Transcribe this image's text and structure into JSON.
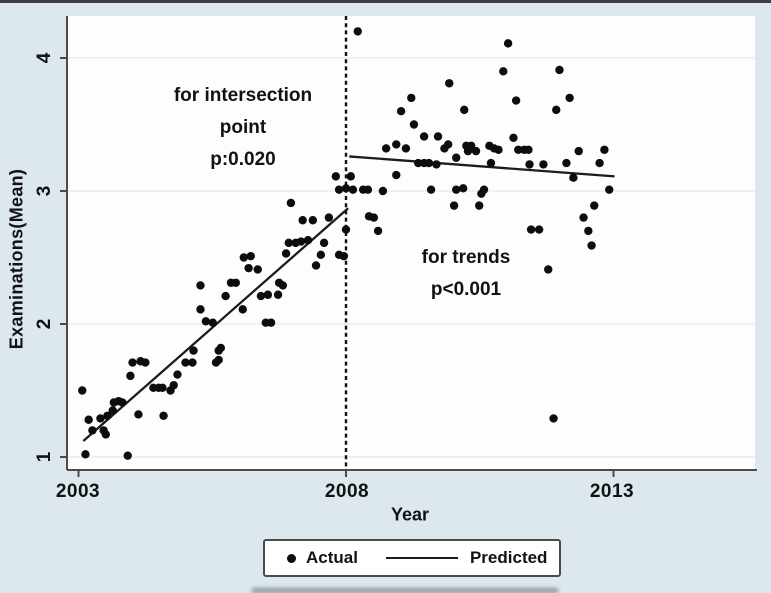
{
  "figure": {
    "y_axis": {
      "label": "Examinations(Mean)",
      "tick_labels": [
        "4",
        "3",
        "2",
        "1"
      ]
    },
    "x_axis": {
      "label": "Year",
      "tick_labels": [
        "2003",
        "2008",
        "2013"
      ]
    },
    "annotations": {
      "intersection_line1": "for intersection",
      "intersection_line2": "point",
      "intersection_line3": "p:0.020",
      "trends_line1": "for trends",
      "trends_line2": "p<0.001"
    },
    "legend": {
      "actual": "Actual",
      "predicted": "Predicted"
    },
    "colors": {
      "background": "#dce8ee",
      "plot_background": "#fdfdfd",
      "points": "#0d0d0d",
      "lines": "#1c1c1c",
      "grid": "#ececec",
      "spine": "#4b4b4b"
    }
  },
  "chart_data": {
    "type": "scatter",
    "title": "",
    "xlabel": "Year",
    "ylabel": "Examinations(Mean)",
    "xlim": [
      2002.8,
      2013.7
    ],
    "ylim": [
      0.95,
      4.35
    ],
    "x_ticks": [
      2003,
      2008,
      2013
    ],
    "y_ticks": [
      1,
      2,
      3,
      4
    ],
    "grid": true,
    "legend_position": "bottom",
    "intervention_x": 2008,
    "annotations": [
      {
        "text": "for intersection point p:0.020",
        "x": 2006.1,
        "y": 3.5
      },
      {
        "text": "for trends p<0.001",
        "x": 2010.3,
        "y": 2.4
      }
    ],
    "series": [
      {
        "name": "Actual",
        "type": "scatter",
        "points": [
          [
            2003.07,
            1.5
          ],
          [
            2003.13,
            1.02
          ],
          [
            2003.19,
            1.28
          ],
          [
            2003.26,
            1.2
          ],
          [
            2003.41,
            1.29
          ],
          [
            2003.47,
            1.2
          ],
          [
            2003.51,
            1.17
          ],
          [
            2003.54,
            1.31
          ],
          [
            2003.64,
            1.35
          ],
          [
            2003.66,
            1.41
          ],
          [
            2003.75,
            1.42
          ],
          [
            2003.82,
            1.41
          ],
          [
            2003.92,
            1.01
          ],
          [
            2003.97,
            1.61
          ],
          [
            2004.01,
            1.71
          ],
          [
            2004.12,
            1.32
          ],
          [
            2004.16,
            1.72
          ],
          [
            2004.25,
            1.71
          ],
          [
            2004.4,
            1.52
          ],
          [
            2004.5,
            1.52
          ],
          [
            2004.57,
            1.52
          ],
          [
            2004.59,
            1.31
          ],
          [
            2004.72,
            1.5
          ],
          [
            2004.78,
            1.54
          ],
          [
            2004.85,
            1.62
          ],
          [
            2005.0,
            1.71
          ],
          [
            2005.13,
            1.71
          ],
          [
            2005.15,
            1.8
          ],
          [
            2005.28,
            2.29
          ],
          [
            2005.28,
            2.11
          ],
          [
            2005.38,
            2.02
          ],
          [
            2005.51,
            2.01
          ],
          [
            2005.57,
            1.71
          ],
          [
            2005.62,
            1.8
          ],
          [
            2005.62,
            1.73
          ],
          [
            2005.66,
            1.82
          ],
          [
            2005.75,
            2.21
          ],
          [
            2005.85,
            2.31
          ],
          [
            2005.94,
            2.31
          ],
          [
            2006.07,
            2.11
          ],
          [
            2006.09,
            2.5
          ],
          [
            2006.18,
            2.42
          ],
          [
            2006.22,
            2.51
          ],
          [
            2006.35,
            2.41
          ],
          [
            2006.41,
            2.21
          ],
          [
            2006.5,
            2.01
          ],
          [
            2006.6,
            2.01
          ],
          [
            2006.54,
            2.22
          ],
          [
            2006.73,
            2.22
          ],
          [
            2006.75,
            2.31
          ],
          [
            2006.82,
            2.29
          ],
          [
            2006.88,
            2.53
          ],
          [
            2006.93,
            2.61
          ],
          [
            2006.97,
            2.91
          ],
          [
            2007.06,
            2.61
          ],
          [
            2007.16,
            2.62
          ],
          [
            2007.19,
            2.78
          ],
          [
            2007.29,
            2.63
          ],
          [
            2007.38,
            2.78
          ],
          [
            2007.44,
            2.44
          ],
          [
            2007.53,
            2.52
          ],
          [
            2007.59,
            2.61
          ],
          [
            2007.68,
            2.8
          ],
          [
            2007.81,
            3.11
          ],
          [
            2007.87,
            2.52
          ],
          [
            2007.87,
            3.01
          ],
          [
            2007.96,
            2.51
          ],
          [
            2008.0,
            2.71
          ],
          [
            2008.0,
            3.02
          ],
          [
            2008.09,
            3.11
          ],
          [
            2008.13,
            3.01
          ],
          [
            2008.22,
            4.2
          ],
          [
            2008.32,
            3.01
          ],
          [
            2008.41,
            3.01
          ],
          [
            2008.43,
            2.81
          ],
          [
            2008.52,
            2.8
          ],
          [
            2008.6,
            2.7
          ],
          [
            2008.69,
            3.0
          ],
          [
            2008.75,
            3.32
          ],
          [
            2008.94,
            3.35
          ],
          [
            2008.94,
            3.12
          ],
          [
            2009.03,
            3.6
          ],
          [
            2009.12,
            3.32
          ],
          [
            2009.22,
            3.7
          ],
          [
            2009.27,
            3.5
          ],
          [
            2009.35,
            3.21
          ],
          [
            2009.46,
            3.41
          ],
          [
            2009.46,
            3.21
          ],
          [
            2009.55,
            3.21
          ],
          [
            2009.59,
            3.01
          ],
          [
            2009.69,
            3.2
          ],
          [
            2009.72,
            3.41
          ],
          [
            2009.84,
            3.32
          ],
          [
            2009.91,
            3.35
          ],
          [
            2009.93,
            3.81
          ],
          [
            2010.02,
            2.89
          ],
          [
            2010.06,
            3.01
          ],
          [
            2010.06,
            3.25
          ],
          [
            2010.19,
            3.02
          ],
          [
            2010.21,
            3.61
          ],
          [
            2010.25,
            3.34
          ],
          [
            2010.28,
            3.3
          ],
          [
            2010.34,
            3.34
          ],
          [
            2010.43,
            3.3
          ],
          [
            2010.49,
            2.89
          ],
          [
            2010.53,
            2.98
          ],
          [
            2010.58,
            3.01
          ],
          [
            2010.68,
            3.34
          ],
          [
            2010.71,
            3.21
          ],
          [
            2010.77,
            3.32
          ],
          [
            2010.85,
            3.31
          ],
          [
            2010.94,
            3.9
          ],
          [
            2011.03,
            4.11
          ],
          [
            2011.13,
            3.4
          ],
          [
            2011.18,
            3.68
          ],
          [
            2011.22,
            3.31
          ],
          [
            2011.33,
            3.31
          ],
          [
            2011.41,
            3.31
          ],
          [
            2011.43,
            3.2
          ],
          [
            2011.46,
            2.71
          ],
          [
            2011.61,
            2.71
          ],
          [
            2011.69,
            3.2
          ],
          [
            2011.78,
            2.41
          ],
          [
            2011.88,
            1.29
          ],
          [
            2011.93,
            3.61
          ],
          [
            2011.99,
            3.91
          ],
          [
            2012.12,
            3.21
          ],
          [
            2012.18,
            3.7
          ],
          [
            2012.25,
            3.1
          ],
          [
            2012.35,
            3.3
          ],
          [
            2012.44,
            2.8
          ],
          [
            2012.53,
            2.7
          ],
          [
            2012.59,
            2.59
          ],
          [
            2012.64,
            2.89
          ],
          [
            2012.74,
            3.21
          ],
          [
            2012.83,
            3.31
          ],
          [
            2012.92,
            3.01
          ]
        ]
      },
      {
        "name": "Predicted",
        "type": "line",
        "segments": [
          {
            "x1": 2003.09,
            "y1": 1.12,
            "x2": 2008.04,
            "y2": 2.87
          },
          {
            "x1": 2008.06,
            "y1": 3.26,
            "x2": 2013.02,
            "y2": 3.11
          }
        ]
      }
    ]
  }
}
